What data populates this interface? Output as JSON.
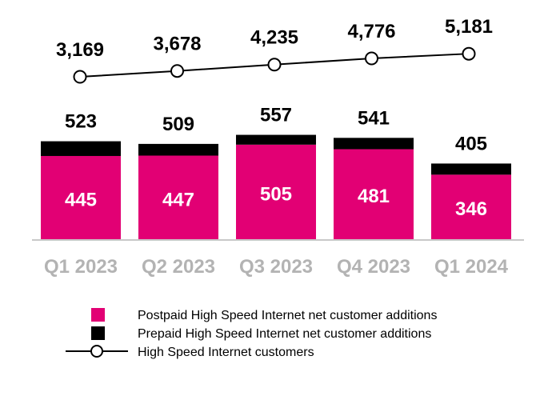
{
  "chart_data": {
    "type": "bar",
    "stacked": true,
    "categories": [
      "Q1 2023",
      "Q2 2023",
      "Q3 2023",
      "Q4 2023",
      "Q1 2024"
    ],
    "series": [
      {
        "name": "Postpaid High Speed Internet net customer additions",
        "values": [
          445,
          447,
          505,
          481,
          346
        ],
        "color": "#e20074"
      },
      {
        "name": "Prepaid High Speed Internet net customer additions",
        "values": [
          78,
          62,
          52,
          60,
          59
        ],
        "color": "#000000"
      }
    ],
    "totals": [
      "523",
      "509",
      "557",
      "541",
      "405"
    ],
    "postpaid_labels": [
      "445",
      "447",
      "505",
      "481",
      "346"
    ],
    "line_series": {
      "name": "High Speed Internet customers",
      "values": [
        3169,
        3678,
        4235,
        4776,
        5181
      ],
      "labels": [
        "3,169",
        "3,678",
        "4,235",
        "4,776",
        "5,181"
      ]
    },
    "legend_position": "bottom",
    "colors": {
      "magenta": "#e20074",
      "black": "#000000",
      "axis_label_gray": "#b3b3b3",
      "axis": "#c8c8c8"
    }
  }
}
